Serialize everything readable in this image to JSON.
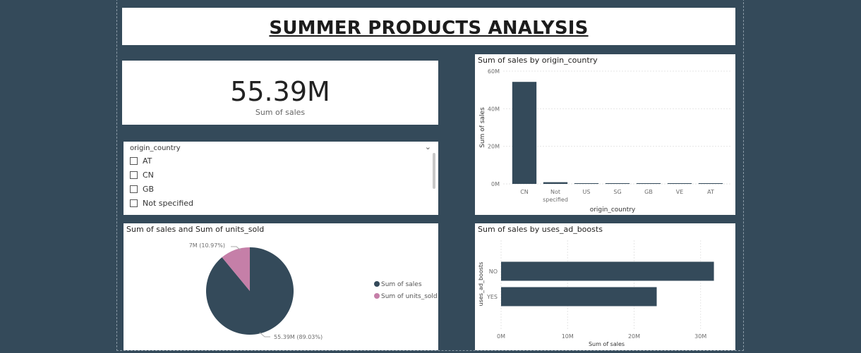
{
  "report": {
    "title": "SUMMER PRODUCTS ANALYSIS"
  },
  "kpi": {
    "value": "55.39M",
    "label": "Sum of sales"
  },
  "slicer": {
    "field": "origin_country",
    "chevron_icon": "chevron-down-icon",
    "items": [
      "AT",
      "CN",
      "GB",
      "Not specified"
    ]
  },
  "colors": {
    "background": "#344a5a",
    "primary": "#344a5a",
    "accent_pink": "#c57fa8"
  },
  "chart_data": [
    {
      "id": "sales-by-country",
      "type": "bar",
      "title": "Sum of sales by origin_country",
      "xlabel": "origin_country",
      "ylabel": "Sum of sales",
      "categories": [
        "CN",
        "Not specified",
        "US",
        "SG",
        "GB",
        "VE",
        "AT"
      ],
      "category_labels": [
        [
          "CN"
        ],
        [
          "Not",
          "specified"
        ],
        [
          "US"
        ],
        [
          "SG"
        ],
        [
          "GB"
        ],
        [
          "VE"
        ],
        [
          "AT"
        ]
      ],
      "values": [
        54.3,
        0.9,
        0.35,
        0.2,
        0.1,
        0.05,
        0.02
      ],
      "value_unit": "M",
      "ylim": [
        0,
        60
      ],
      "yticks": [
        0,
        20,
        40,
        60
      ],
      "ytick_labels": [
        "0M",
        "20M",
        "40M",
        "60M"
      ],
      "grid": true
    },
    {
      "id": "sales-units-pie",
      "type": "pie",
      "title": "Sum of sales and Sum of units_sold",
      "slices": [
        {
          "label": "Sum of sales",
          "value": 55.39,
          "data_label": "55.39M (89.03%)",
          "color": "#344a5a"
        },
        {
          "label": "Sum of units_sold",
          "value": 6.83,
          "data_label": "7M (10.97%)",
          "color": "#c57fa8"
        }
      ],
      "legend_position": "right"
    },
    {
      "id": "sales-by-ad-boosts",
      "type": "bar",
      "orientation": "horizontal",
      "title": "Sum of sales by uses_ad_boosts",
      "xlabel": "Sum of sales",
      "ylabel": "uses_ad_boosts",
      "categories": [
        "NO",
        "YES"
      ],
      "values": [
        32.0,
        23.4
      ],
      "value_unit": "M",
      "xlim": [
        0,
        33
      ],
      "xticks": [
        0,
        10,
        20,
        30
      ],
      "xtick_labels": [
        "0M",
        "10M",
        "20M",
        "30M"
      ],
      "grid": true
    }
  ]
}
